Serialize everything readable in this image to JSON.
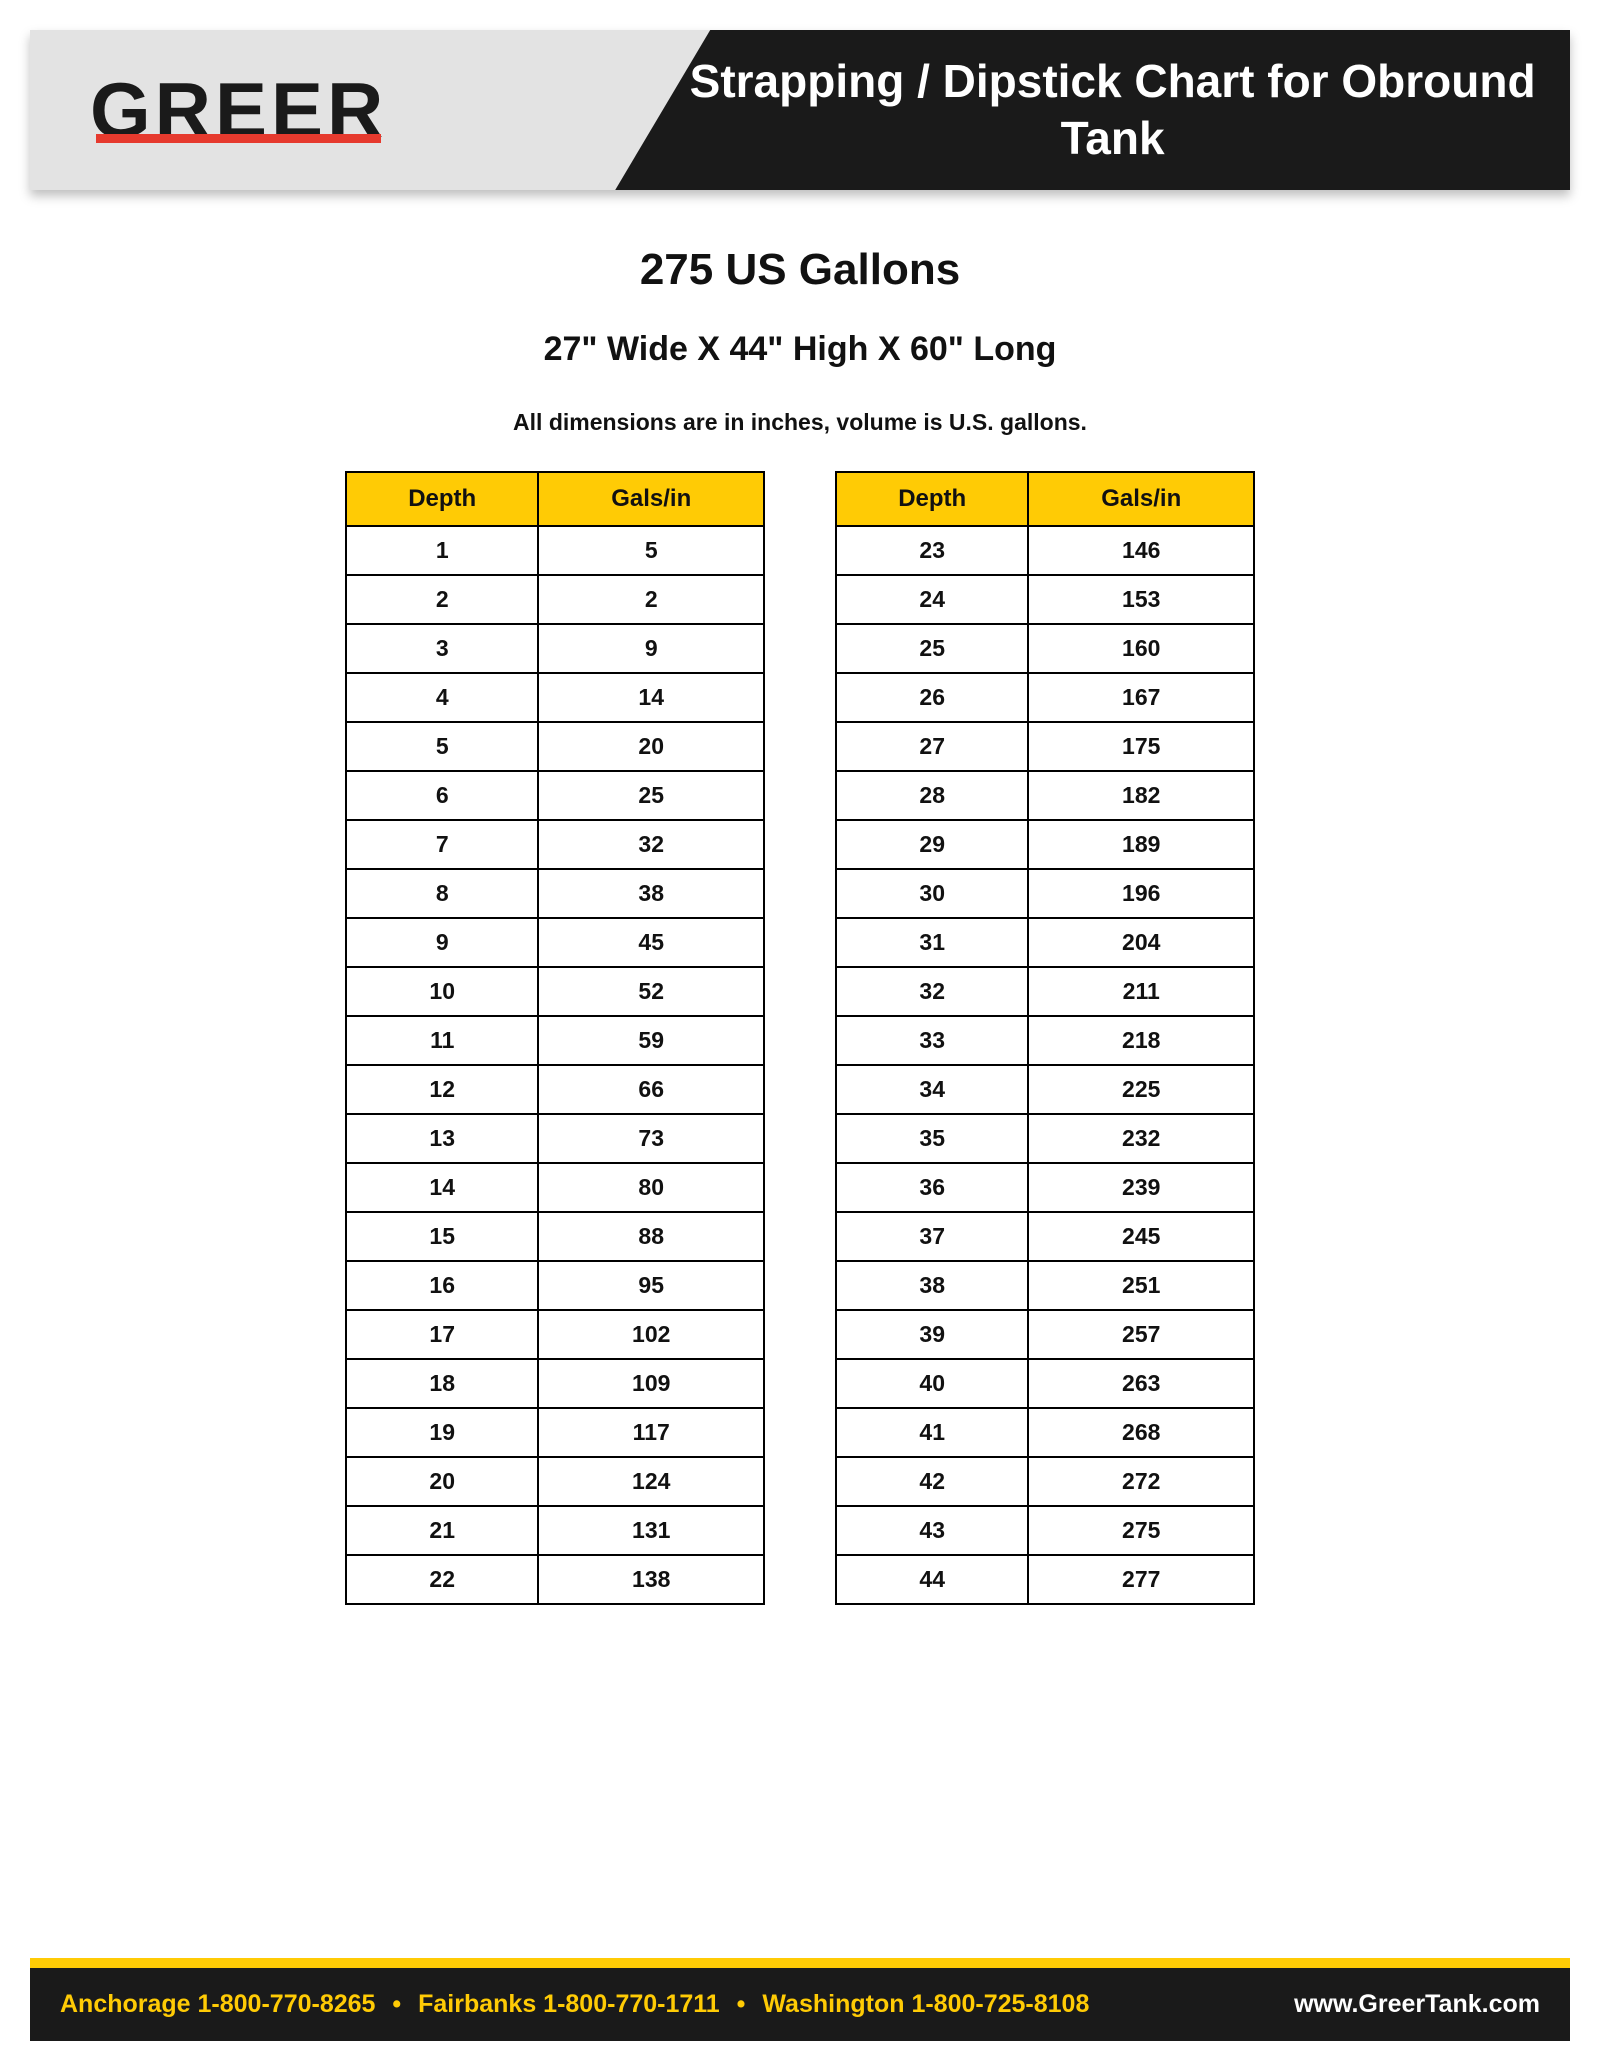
{
  "colors": {
    "header_light_bg": "#e3e3e3",
    "header_dark_bg": "#1a1a1a",
    "accent_yellow": "#ffcb05",
    "accent_red": "#e63a2e",
    "text_dark": "#111111",
    "text_light": "#ffffff",
    "border": "#000000",
    "page_bg": "#ffffff"
  },
  "header": {
    "logo_text": "GREER",
    "title": "Strapping / Dipstick Chart for Obround Tank"
  },
  "titles": {
    "capacity": "275 US Gallons",
    "dimensions": "27\" Wide X  44\" High X 60\" Long",
    "note": "All dimensions are in inches, volume is U.S. gallons."
  },
  "table": {
    "columns": [
      "Depth",
      "Gals/in"
    ],
    "left_rows": [
      [
        1,
        5
      ],
      [
        2,
        2
      ],
      [
        3,
        9
      ],
      [
        4,
        14
      ],
      [
        5,
        20
      ],
      [
        6,
        25
      ],
      [
        7,
        32
      ],
      [
        8,
        38
      ],
      [
        9,
        45
      ],
      [
        10,
        52
      ],
      [
        11,
        59
      ],
      [
        12,
        66
      ],
      [
        13,
        73
      ],
      [
        14,
        80
      ],
      [
        15,
        88
      ],
      [
        16,
        95
      ],
      [
        17,
        102
      ],
      [
        18,
        109
      ],
      [
        19,
        117
      ],
      [
        20,
        124
      ],
      [
        21,
        131
      ],
      [
        22,
        138
      ]
    ],
    "right_rows": [
      [
        23,
        146
      ],
      [
        24,
        153
      ],
      [
        25,
        160
      ],
      [
        26,
        167
      ],
      [
        27,
        175
      ],
      [
        28,
        182
      ],
      [
        29,
        189
      ],
      [
        30,
        196
      ],
      [
        31,
        204
      ],
      [
        32,
        211
      ],
      [
        33,
        218
      ],
      [
        34,
        225
      ],
      [
        35,
        232
      ],
      [
        36,
        239
      ],
      [
        37,
        245
      ],
      [
        38,
        251
      ],
      [
        39,
        257
      ],
      [
        40,
        263
      ],
      [
        41,
        268
      ],
      [
        42,
        272
      ],
      [
        43,
        275
      ],
      [
        44,
        277
      ]
    ]
  },
  "footer": {
    "contacts": [
      "Anchorage 1-800-770-8265",
      "Fairbanks 1-800-770-1711",
      "Washington 1-800-725-8108"
    ],
    "separator": "•",
    "url": "www.GreerTank.com"
  }
}
